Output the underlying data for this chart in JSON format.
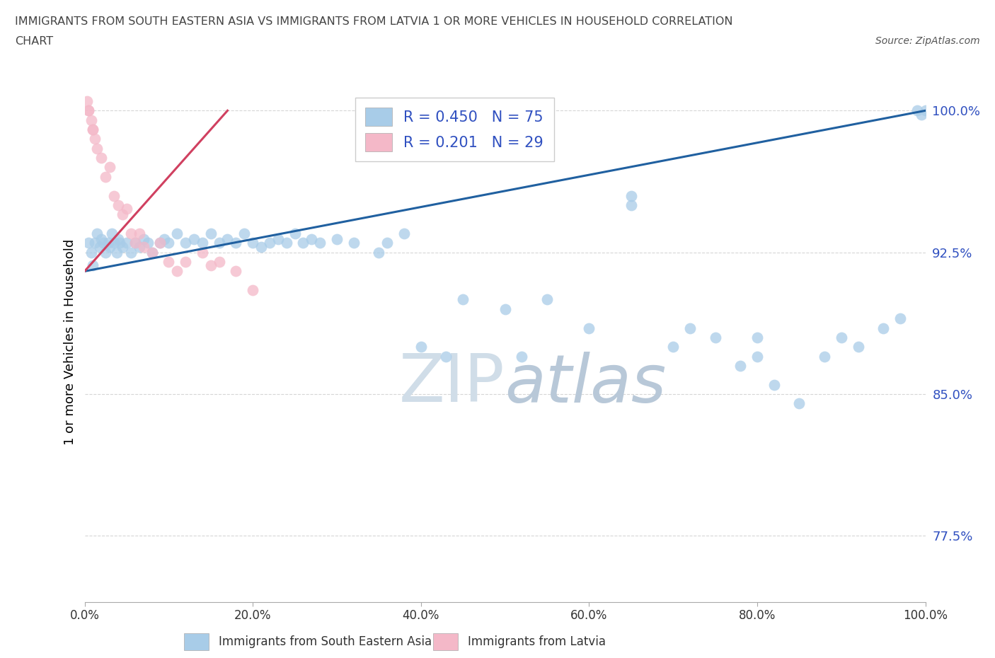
{
  "title_line1": "IMMIGRANTS FROM SOUTH EASTERN ASIA VS IMMIGRANTS FROM LATVIA 1 OR MORE VEHICLES IN HOUSEHOLD CORRELATION",
  "title_line2": "CHART",
  "source_text": "Source: ZipAtlas.com",
  "ylabel": "1 or more Vehicles in Household",
  "blue_label": "Immigrants from South Eastern Asia",
  "pink_label": "Immigrants from Latvia",
  "blue_R": 0.45,
  "blue_N": 75,
  "pink_R": 0.201,
  "pink_N": 29,
  "blue_color": "#a8cce8",
  "pink_color": "#f4b8c8",
  "blue_line_color": "#2060a0",
  "pink_line_color": "#d04060",
  "legend_R_color": "#3050c0",
  "watermark_color": "#d0dde8",
  "xlim": [
    0.0,
    100.0
  ],
  "ylim": [
    74.0,
    101.5
  ],
  "yticks": [
    77.5,
    85.0,
    92.5,
    100.0
  ],
  "xtick_vals": [
    0.0,
    20.0,
    40.0,
    60.0,
    80.0,
    100.0
  ],
  "blue_x": [
    0.5,
    0.8,
    1.0,
    1.2,
    1.5,
    1.8,
    2.0,
    2.2,
    2.5,
    2.8,
    3.0,
    3.2,
    3.5,
    3.8,
    4.0,
    4.2,
    4.5,
    5.0,
    5.5,
    6.0,
    6.5,
    7.0,
    7.5,
    8.0,
    9.0,
    9.5,
    10.0,
    11.0,
    12.0,
    13.0,
    14.0,
    15.0,
    16.0,
    17.0,
    18.0,
    19.0,
    20.0,
    21.0,
    22.0,
    23.0,
    24.0,
    25.0,
    26.0,
    27.0,
    28.0,
    30.0,
    32.0,
    35.0,
    36.0,
    38.0,
    40.0,
    43.0,
    45.0,
    50.0,
    52.0,
    55.0,
    60.0,
    65.0,
    70.0,
    75.0,
    78.0,
    80.0,
    82.0,
    85.0,
    88.0,
    90.0,
    92.0,
    95.0,
    97.0,
    99.0,
    99.5,
    100.0,
    65.0,
    72.0,
    80.0
  ],
  "blue_y": [
    93.0,
    92.5,
    91.8,
    93.0,
    93.5,
    92.8,
    93.2,
    93.0,
    92.5,
    93.0,
    92.8,
    93.5,
    93.0,
    92.5,
    93.2,
    93.0,
    92.8,
    93.0,
    92.5,
    93.0,
    92.8,
    93.2,
    93.0,
    92.5,
    93.0,
    93.2,
    93.0,
    93.5,
    93.0,
    93.2,
    93.0,
    93.5,
    93.0,
    93.2,
    93.0,
    93.5,
    93.0,
    92.8,
    93.0,
    93.2,
    93.0,
    93.5,
    93.0,
    93.2,
    93.0,
    93.2,
    93.0,
    92.5,
    93.0,
    93.5,
    87.5,
    87.0,
    90.0,
    89.5,
    87.0,
    90.0,
    88.5,
    95.0,
    87.5,
    88.0,
    86.5,
    88.0,
    85.5,
    84.5,
    87.0,
    88.0,
    87.5,
    88.5,
    89.0,
    100.0,
    99.8,
    100.0,
    95.5,
    88.5,
    87.0
  ],
  "pink_x": [
    0.5,
    0.8,
    1.0,
    1.2,
    1.5,
    2.0,
    2.5,
    3.0,
    3.5,
    4.0,
    4.5,
    5.0,
    5.5,
    6.0,
    6.5,
    7.0,
    8.0,
    9.0,
    10.0,
    11.0,
    12.0,
    14.0,
    15.0,
    16.0,
    18.0,
    20.0,
    0.3,
    0.5,
    1.0
  ],
  "pink_y": [
    100.0,
    99.5,
    99.0,
    98.5,
    98.0,
    97.5,
    96.5,
    97.0,
    95.5,
    95.0,
    94.5,
    94.8,
    93.5,
    93.0,
    93.5,
    92.8,
    92.5,
    93.0,
    92.0,
    91.5,
    92.0,
    92.5,
    91.8,
    92.0,
    91.5,
    90.5,
    100.5,
    100.0,
    99.0
  ]
}
